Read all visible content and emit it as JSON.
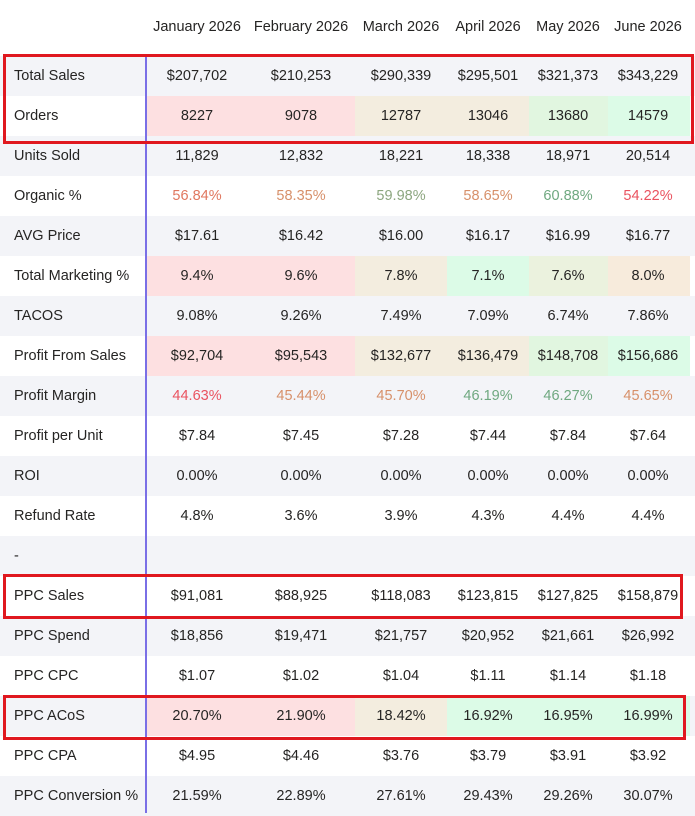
{
  "columns": [
    "January 2026",
    "February 2026",
    "March 2026",
    "April 2026",
    "May 2026",
    "June 2026"
  ],
  "rows": [
    {
      "label": "Total Sales",
      "values": [
        "$207,702",
        "$210,253",
        "$290,339",
        "$295,501",
        "$321,373",
        "$343,229"
      ],
      "highlighted": true
    },
    {
      "label": "Orders",
      "values": [
        "8227",
        "9078",
        "12787",
        "13046",
        "13680",
        "14579"
      ],
      "bg": [
        "#fde0e1",
        "#fde0e1",
        "#f3eddf",
        "#f3eddf",
        "#e1f6e0",
        "#dcfbe7"
      ],
      "highlighted": true
    },
    {
      "label": "Units Sold",
      "values": [
        "11,829",
        "12,832",
        "18,221",
        "18,338",
        "18,971",
        "20,514"
      ]
    },
    {
      "label": "Organic %",
      "values": [
        "56.84%",
        "58.35%",
        "59.98%",
        "58.65%",
        "60.88%",
        "54.22%"
      ],
      "colors": [
        "#e0775f",
        "#d7906a",
        "#8ca67f",
        "#d7906a",
        "#6fa880",
        "#ea5360"
      ]
    },
    {
      "label": "AVG Price",
      "values": [
        "$17.61",
        "$16.42",
        "$16.00",
        "$16.17",
        "$16.99",
        "$16.77"
      ]
    },
    {
      "label": "Total Marketing %",
      "values": [
        "9.4%",
        "9.6%",
        "7.8%",
        "7.1%",
        "7.6%",
        "8.0%"
      ],
      "bg": [
        "#fde0e1",
        "#fde0e1",
        "#f3eddf",
        "#dcfbe7",
        "#ebf2de",
        "#f7ebdc"
      ]
    },
    {
      "label": "TACOS",
      "values": [
        "9.08%",
        "9.26%",
        "7.49%",
        "7.09%",
        "6.74%",
        "7.86%"
      ]
    },
    {
      "label": "Profit From Sales",
      "values": [
        "$92,704",
        "$95,543",
        "$132,677",
        "$136,479",
        "$148,708",
        "$156,686"
      ],
      "bg": [
        "#fde0e1",
        "#fde0e1",
        "#f3eddf",
        "#f3eddf",
        "#e1f6e0",
        "#dcfbe7"
      ]
    },
    {
      "label": "Profit Margin",
      "values": [
        "44.63%",
        "45.44%",
        "45.70%",
        "46.19%",
        "46.27%",
        "45.65%"
      ],
      "colors": [
        "#ea5360",
        "#d7906a",
        "#d7906a",
        "#6fa880",
        "#6fa880",
        "#d7906a"
      ]
    },
    {
      "label": "Profit per Unit",
      "values": [
        "$7.84",
        "$7.45",
        "$7.28",
        "$7.44",
        "$7.84",
        "$7.64"
      ]
    },
    {
      "label": "ROI",
      "values": [
        "0.00%",
        "0.00%",
        "0.00%",
        "0.00%",
        "0.00%",
        "0.00%"
      ]
    },
    {
      "label": "Refund Rate",
      "values": [
        "4.8%",
        "3.6%",
        "3.9%",
        "4.3%",
        "4.4%",
        "4.4%"
      ]
    },
    {
      "label": "-",
      "values": [
        "",
        "",
        "",
        "",
        "",
        ""
      ]
    },
    {
      "label": "PPC Sales",
      "values": [
        "$91,081",
        "$88,925",
        "$118,083",
        "$123,815",
        "$127,825",
        "$158,879"
      ],
      "highlighted": true
    },
    {
      "label": "PPC Spend",
      "values": [
        "$18,856",
        "$19,471",
        "$21,757",
        "$20,952",
        "$21,661",
        "$26,992"
      ]
    },
    {
      "label": "PPC CPC",
      "values": [
        "$1.07",
        "$1.02",
        "$1.04",
        "$1.11",
        "$1.14",
        "$1.18"
      ]
    },
    {
      "label": "PPC ACoS",
      "values": [
        "20.70%",
        "21.90%",
        "18.42%",
        "16.92%",
        "16.95%",
        "16.99%"
      ],
      "bg": [
        "#fde0e1",
        "#fde0e1",
        "#f3eddf",
        "#dcfbe7",
        "#dcfbe7",
        "#dcfbe7"
      ],
      "highlighted": true
    },
    {
      "label": "PPC CPA",
      "values": [
        "$4.95",
        "$4.46",
        "$3.76",
        "$3.79",
        "$3.91",
        "$3.92"
      ]
    },
    {
      "label": "PPC Conversion %",
      "values": [
        "21.59%",
        "22.89%",
        "27.61%",
        "29.43%",
        "29.26%",
        "30.07%"
      ]
    }
  ],
  "highlight_color": "#e0181f",
  "divider_color": "#7a6fe6"
}
